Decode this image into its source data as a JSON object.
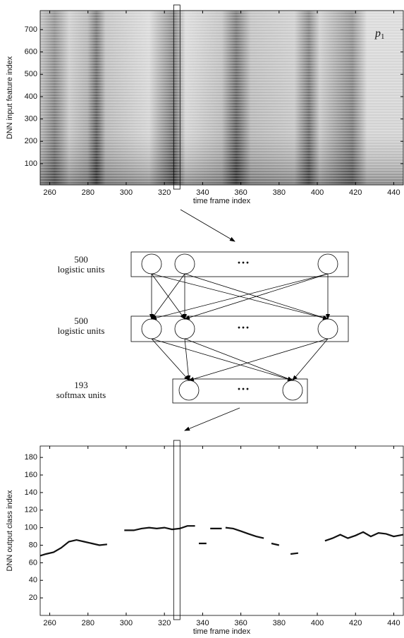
{
  "chart_data": [
    {
      "type": "heatmap",
      "xlabel": "time frame index",
      "ylabel": "DNN input feature index",
      "annotation": {
        "base": "p",
        "subscript": "1"
      },
      "xlim": [
        255,
        445
      ],
      "xticks": [
        260,
        280,
        300,
        320,
        340,
        360,
        380,
        400,
        420,
        440
      ],
      "ylim": [
        5,
        785
      ],
      "yticks": [
        100,
        200,
        300,
        400,
        500,
        600,
        700
      ],
      "highlight_x": 326.5
    },
    {
      "type": "line",
      "xlabel": "time frame index",
      "ylabel": "DNN output class index",
      "color": "#111111",
      "xlim": [
        255,
        445
      ],
      "xticks": [
        260,
        280,
        300,
        320,
        340,
        360,
        380,
        400,
        420,
        440
      ],
      "ylim": [
        0,
        193
      ],
      "yticks": [
        20,
        40,
        60,
        80,
        100,
        120,
        140,
        160,
        180
      ],
      "highlight_x": 326.5,
      "x": [
        255,
        258,
        262,
        266,
        270,
        274,
        278,
        282,
        286,
        290,
        null,
        299,
        304,
        308,
        312,
        316,
        320,
        324,
        328,
        332,
        336,
        null,
        338,
        342,
        null,
        344,
        350,
        null,
        352,
        356,
        360,
        364,
        368,
        372,
        null,
        376,
        380,
        null,
        386,
        390,
        null,
        404,
        408,
        412,
        416,
        420,
        424,
        428,
        432,
        436,
        440,
        445
      ],
      "values": [
        68,
        70,
        72,
        77,
        84,
        86,
        84,
        82,
        80,
        81,
        null,
        97,
        97,
        99,
        100,
        99,
        100,
        98,
        99,
        102,
        102,
        null,
        82,
        82,
        null,
        99,
        99,
        null,
        100,
        99,
        96,
        93,
        90,
        88,
        null,
        82,
        80,
        null,
        70,
        71,
        null,
        85,
        88,
        92,
        88,
        91,
        95,
        90,
        94,
        93,
        90,
        92
      ]
    }
  ],
  "diagram": {
    "layers": [
      {
        "units": "500",
        "label": "logistic units",
        "ellipsis": "···"
      },
      {
        "units": "500",
        "label": "logistic units",
        "ellipsis": "···"
      },
      {
        "units": "193",
        "label": "softmax units",
        "ellipsis": "···"
      }
    ]
  }
}
